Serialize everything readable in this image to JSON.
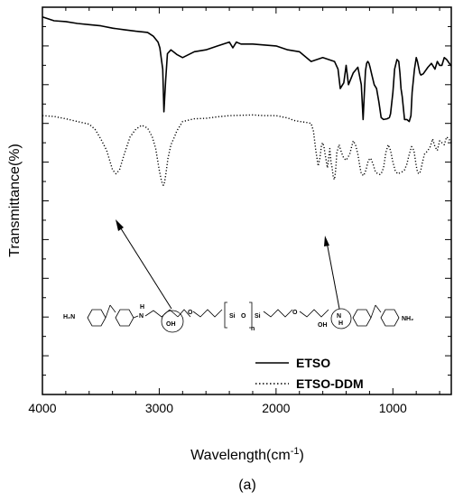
{
  "chart_data": {
    "type": "line",
    "title": "",
    "xlabel": "Wavelength(cm",
    "xlabel_superscript": "-1",
    "xlabel_suffix": ")",
    "ylabel": "Transmittance(%)",
    "caption": "(a)",
    "xlim": [
      4000,
      500
    ],
    "x_ticks": [
      4000,
      3000,
      2000,
      1000
    ],
    "y_tick_labels_shown": false,
    "legend_position": "bottom-right",
    "series": [
      {
        "name": "ETSO",
        "style": "solid",
        "x": [
          4000,
          3900,
          3800,
          3700,
          3600,
          3500,
          3400,
          3300,
          3200,
          3100,
          3050,
          3010,
          2995,
          2970,
          2960,
          2945,
          2930,
          2900,
          2870,
          2850,
          2800,
          2700,
          2600,
          2500,
          2400,
          2370,
          2340,
          2300,
          2200,
          2000,
          1900,
          1800,
          1700,
          1600,
          1500,
          1470,
          1450,
          1420,
          1400,
          1380,
          1340,
          1300,
          1270,
          1255,
          1245,
          1235,
          1225,
          1215,
          1205,
          1195,
          1180,
          1160,
          1140,
          1120,
          1100,
          1080,
          1050,
          1030,
          1020,
          1000,
          985,
          965,
          950,
          940,
          930,
          920,
          910,
          900,
          880,
          860,
          845,
          835,
          815,
          800,
          790,
          780,
          770,
          760,
          740,
          700,
          670,
          640,
          620,
          600,
          580,
          560,
          540,
          500
        ],
        "y": [
          97.5,
          96.5,
          96.3,
          95.8,
          95.5,
          95.2,
          94.6,
          94.2,
          93.8,
          93.5,
          92.5,
          91.0,
          89.5,
          84.0,
          73.0,
          81.0,
          88.0,
          89.0,
          88.3,
          87.8,
          87.0,
          88.5,
          89.0,
          90.0,
          91.0,
          89.5,
          91.0,
          90.5,
          90.5,
          90.0,
          89.0,
          88.5,
          86.0,
          87.0,
          86.0,
          84.0,
          79.0,
          80.5,
          85.0,
          80.0,
          83.0,
          84.5,
          80.0,
          71.0,
          77.5,
          83.5,
          85.5,
          86.0,
          85.5,
          84.5,
          82.5,
          80.0,
          79.0,
          75.5,
          71.5,
          71.0,
          71.2,
          71.5,
          72.5,
          78.0,
          84.0,
          86.5,
          86.0,
          83.0,
          79.0,
          77.0,
          74.0,
          71.0,
          71.0,
          70.5,
          72.0,
          78.0,
          84.0,
          87.0,
          86.0,
          84.5,
          83.0,
          82.5,
          82.8,
          84.5,
          85.5,
          84.0,
          86.0,
          85.0,
          85.0,
          87.0,
          86.5,
          84.8
        ]
      },
      {
        "name": "ETSO-DDM",
        "style": "dotted",
        "x": [
          4000,
          3900,
          3800,
          3700,
          3600,
          3550,
          3500,
          3450,
          3400,
          3370,
          3340,
          3300,
          3250,
          3200,
          3150,
          3100,
          3060,
          3030,
          3000,
          2980,
          2965,
          2955,
          2945,
          2925,
          2900,
          2870,
          2850,
          2800,
          2700,
          2600,
          2500,
          2400,
          2300,
          2200,
          2100,
          2000,
          1900,
          1850,
          1800,
          1750,
          1700,
          1680,
          1660,
          1640,
          1625,
          1610,
          1600,
          1590,
          1580,
          1560,
          1550,
          1540,
          1530,
          1520,
          1510,
          1500,
          1490,
          1480,
          1460,
          1440,
          1420,
          1400,
          1370,
          1340,
          1320,
          1300,
          1280,
          1270,
          1250,
          1230,
          1210,
          1190,
          1170,
          1150,
          1130,
          1110,
          1100,
          1080,
          1060,
          1040,
          1020,
          1000,
          980,
          960,
          940,
          920,
          900,
          880,
          860,
          840,
          820,
          810,
          800,
          790,
          780,
          770,
          760,
          750,
          730,
          700,
          680,
          660,
          640,
          620,
          600,
          580,
          560,
          540,
          520,
          500
        ],
        "y": [
          72.0,
          71.8,
          71.2,
          70.5,
          69.8,
          68.5,
          66.0,
          63.0,
          58.0,
          57.0,
          58.0,
          62.0,
          66.5,
          68.5,
          69.5,
          68.8,
          66.5,
          63.5,
          58.0,
          55.0,
          54.0,
          54.8,
          56.5,
          61.0,
          64.5,
          66.5,
          68.0,
          70.5,
          71.2,
          71.3,
          71.7,
          72.0,
          72.1,
          72.2,
          72.0,
          72.0,
          71.4,
          70.8,
          70.5,
          70.3,
          70.0,
          68.0,
          63.0,
          59.0,
          61.0,
          64.5,
          65.0,
          64.0,
          62.0,
          58.5,
          61.0,
          63.5,
          60.0,
          58.5,
          56.0,
          55.5,
          58.0,
          62.5,
          64.5,
          62.5,
          61.0,
          60.5,
          62.0,
          65.5,
          64.5,
          62.0,
          58.5,
          57.0,
          56.5,
          58.0,
          60.5,
          61.0,
          59.5,
          57.5,
          57.0,
          56.8,
          57.0,
          58.5,
          62.5,
          64.5,
          63.0,
          60.0,
          57.8,
          57.0,
          57.2,
          57.5,
          58.0,
          59.5,
          62.0,
          64.0,
          63.0,
          61.0,
          59.0,
          57.5,
          57.0,
          57.2,
          58.0,
          59.5,
          62.0,
          63.0,
          64.0,
          66.0,
          64.0,
          63.0,
          65.5,
          65.0,
          64.5,
          66.5,
          66.0,
          65.0
        ]
      }
    ]
  },
  "annotation": {
    "structure_label": "ETSO-DDM chemical structure",
    "left_amine": "H₂N",
    "right_amine": "NH₂",
    "nh_left": "H",
    "nh_left_n": "N",
    "oh_left": "OH",
    "si_left": "Si",
    "si_o": "O",
    "si_right": "Si",
    "n_sub": "n",
    "oh_right": "OH",
    "nh_right_n": "N",
    "nh_right_h": "H"
  },
  "colors": {
    "line": "#000000",
    "background": "#ffffff"
  }
}
